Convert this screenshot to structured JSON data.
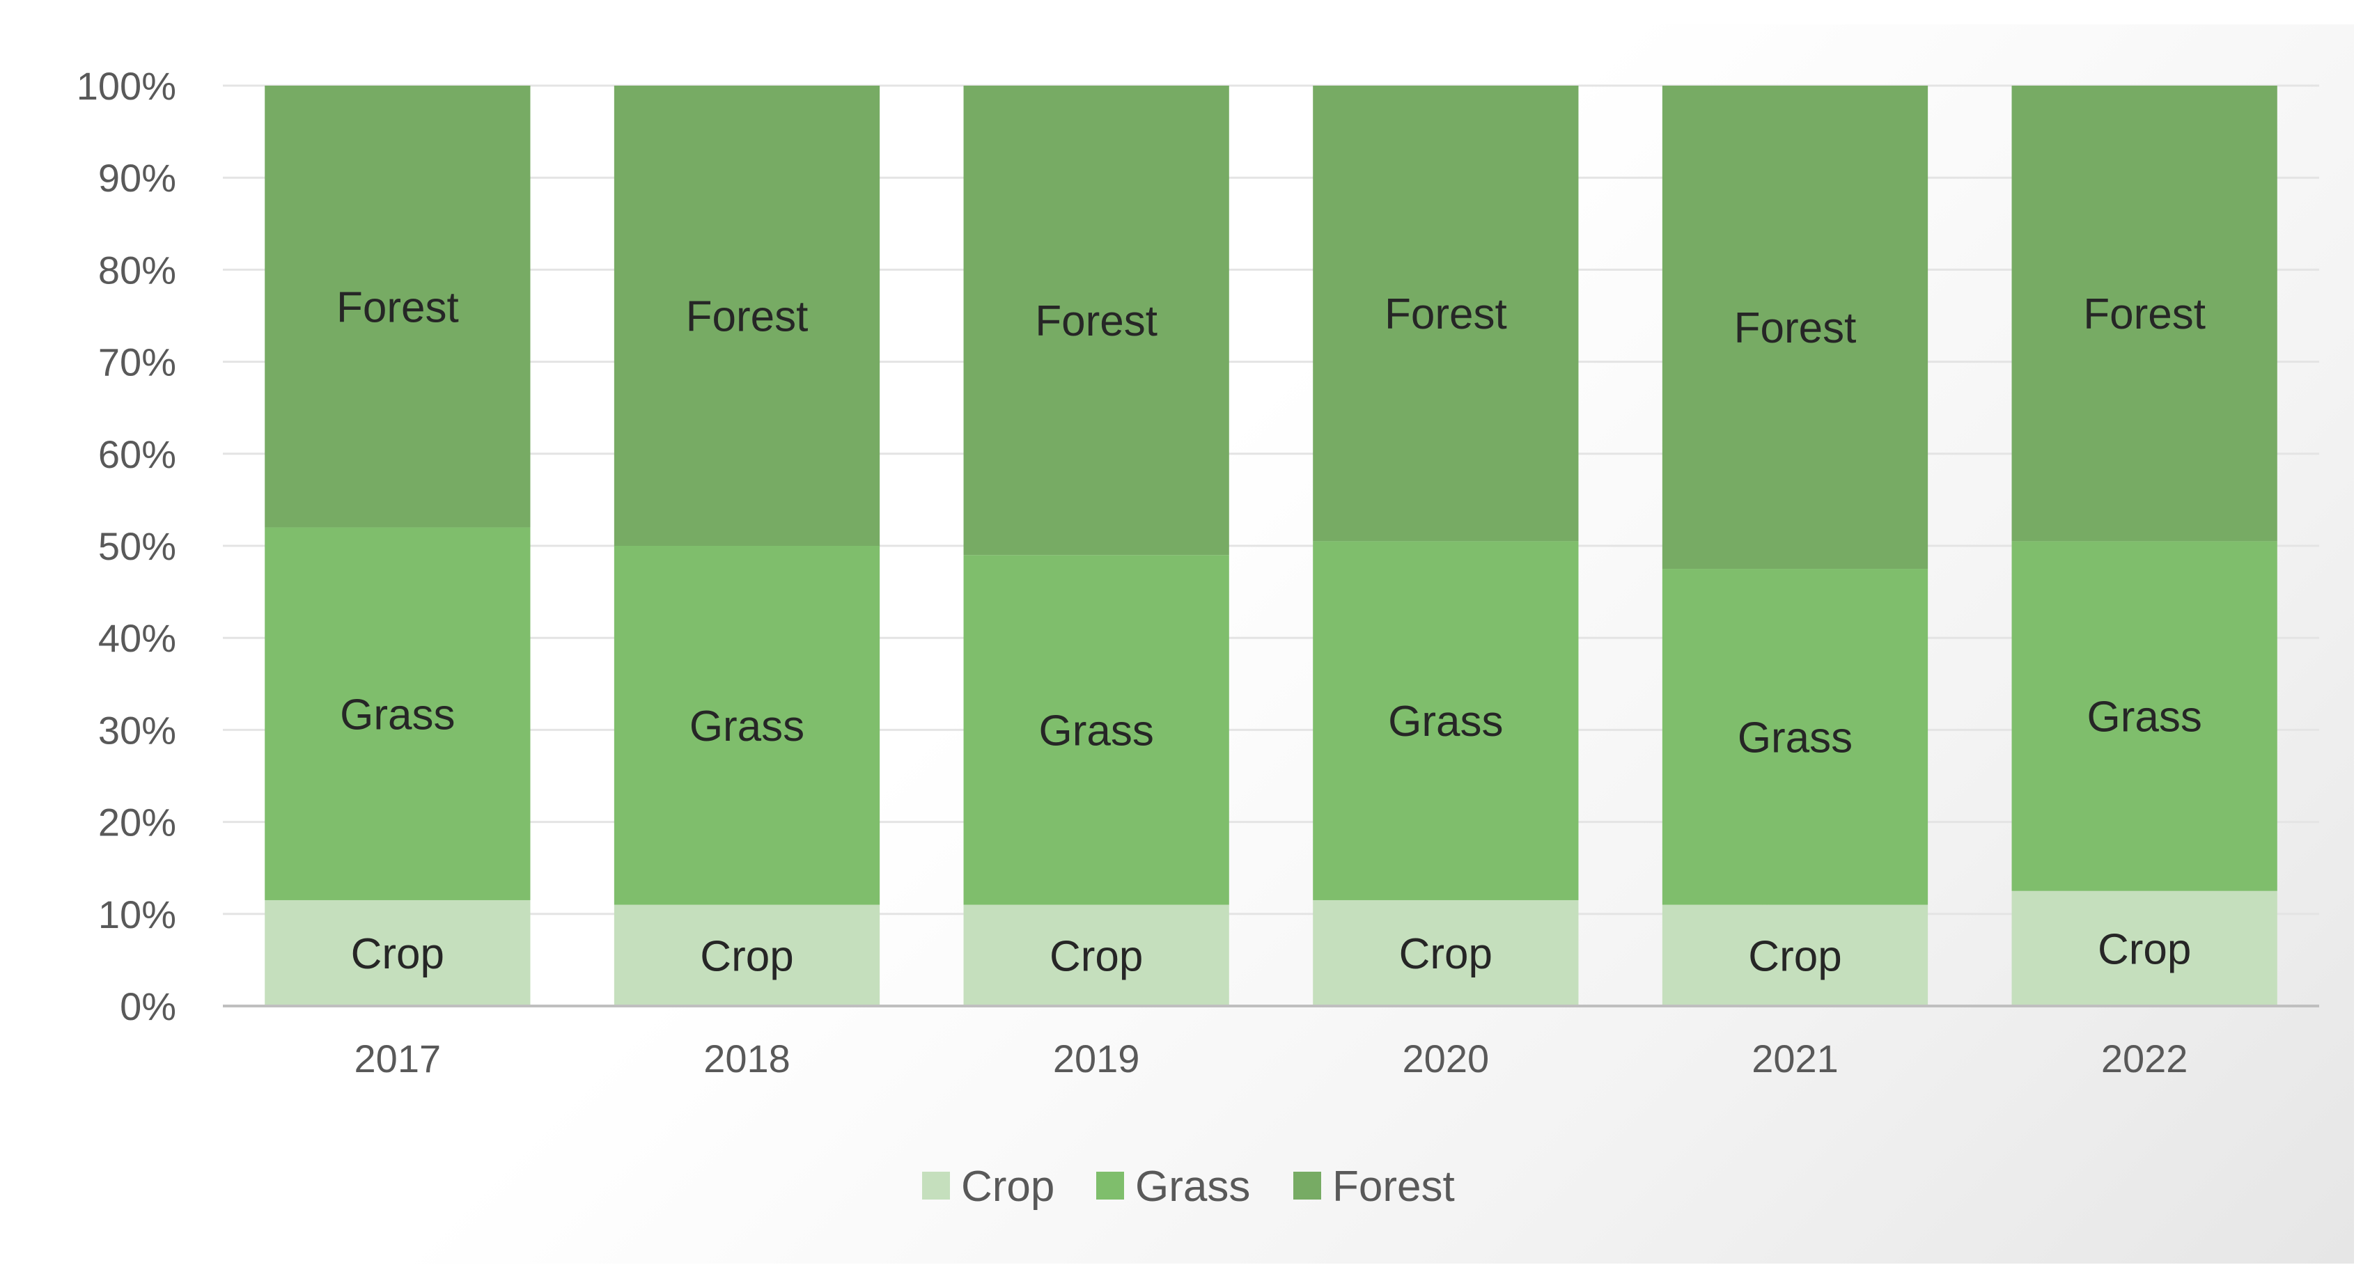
{
  "chart_data": {
    "type": "bar",
    "stacked": true,
    "percent_stacked": true,
    "categories": [
      "2017",
      "2018",
      "2019",
      "2020",
      "2021",
      "2022"
    ],
    "series": [
      {
        "name": "Crop",
        "color": "#c5dfbd",
        "values": [
          11.5,
          11,
          11,
          11.5,
          11,
          12.5
        ]
      },
      {
        "name": "Grass",
        "color": "#7fbe6c",
        "values": [
          40.5,
          39,
          38,
          39,
          36.5,
          38
        ]
      },
      {
        "name": "Forest",
        "color": "#77ab64",
        "values": [
          48,
          50,
          51,
          49.5,
          52.5,
          49.5
        ]
      }
    ],
    "y_ticks": [
      "0%",
      "10%",
      "20%",
      "30%",
      "40%",
      "50%",
      "60%",
      "70%",
      "80%",
      "90%",
      "100%"
    ],
    "ylim": [
      0,
      100
    ],
    "grid": true,
    "legend_position": "bottom",
    "title": "",
    "xlabel": "",
    "ylabel": ""
  }
}
